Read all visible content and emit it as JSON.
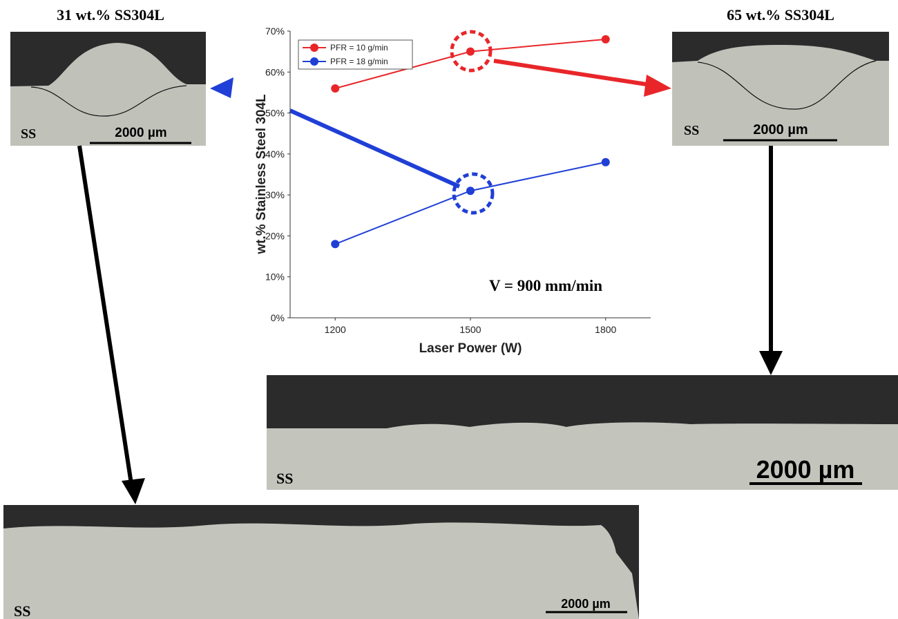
{
  "chart_data": {
    "type": "line",
    "x_label": "Laser Power (W)",
    "y_label": "wt.% Stainless Steel 304L",
    "annotation": "V = 900 mm/min",
    "x": [
      1200,
      1500,
      1800
    ],
    "series": [
      {
        "name": "PFR = 10 g/min",
        "color": "#e8262a",
        "values": [
          56,
          65,
          68
        ]
      },
      {
        "name": "PFR = 18 g/min",
        "color": "#1f3fd6",
        "values": [
          18,
          31,
          38
        ]
      }
    ],
    "xlim": [
      1100,
      1900
    ],
    "xticks": [
      1200,
      1500,
      1800
    ],
    "ylim": [
      0,
      70
    ],
    "yticks": [
      {
        "value": 0,
        "label": "0%"
      },
      {
        "value": 10,
        "label": "10%"
      },
      {
        "value": 20,
        "label": "20%"
      },
      {
        "value": 30,
        "label": "30%"
      },
      {
        "value": 40,
        "label": "40%"
      },
      {
        "value": 50,
        "label": "50%"
      },
      {
        "value": 60,
        "label": "60%"
      },
      {
        "value": 70,
        "label": "70%"
      }
    ],
    "legend": "upper left",
    "grid": false
  },
  "micrographs": [
    {
      "title": "31 wt.% SS304L",
      "substrate": "SS",
      "scale": "2000 µm"
    },
    {
      "title": "65 wt.% SS304L",
      "substrate": "SS",
      "scale": "2000 µm"
    },
    {
      "substrate": "SS",
      "scale": "2000 µm"
    },
    {
      "substrate": "SS",
      "scale": "2000 µm"
    }
  ]
}
